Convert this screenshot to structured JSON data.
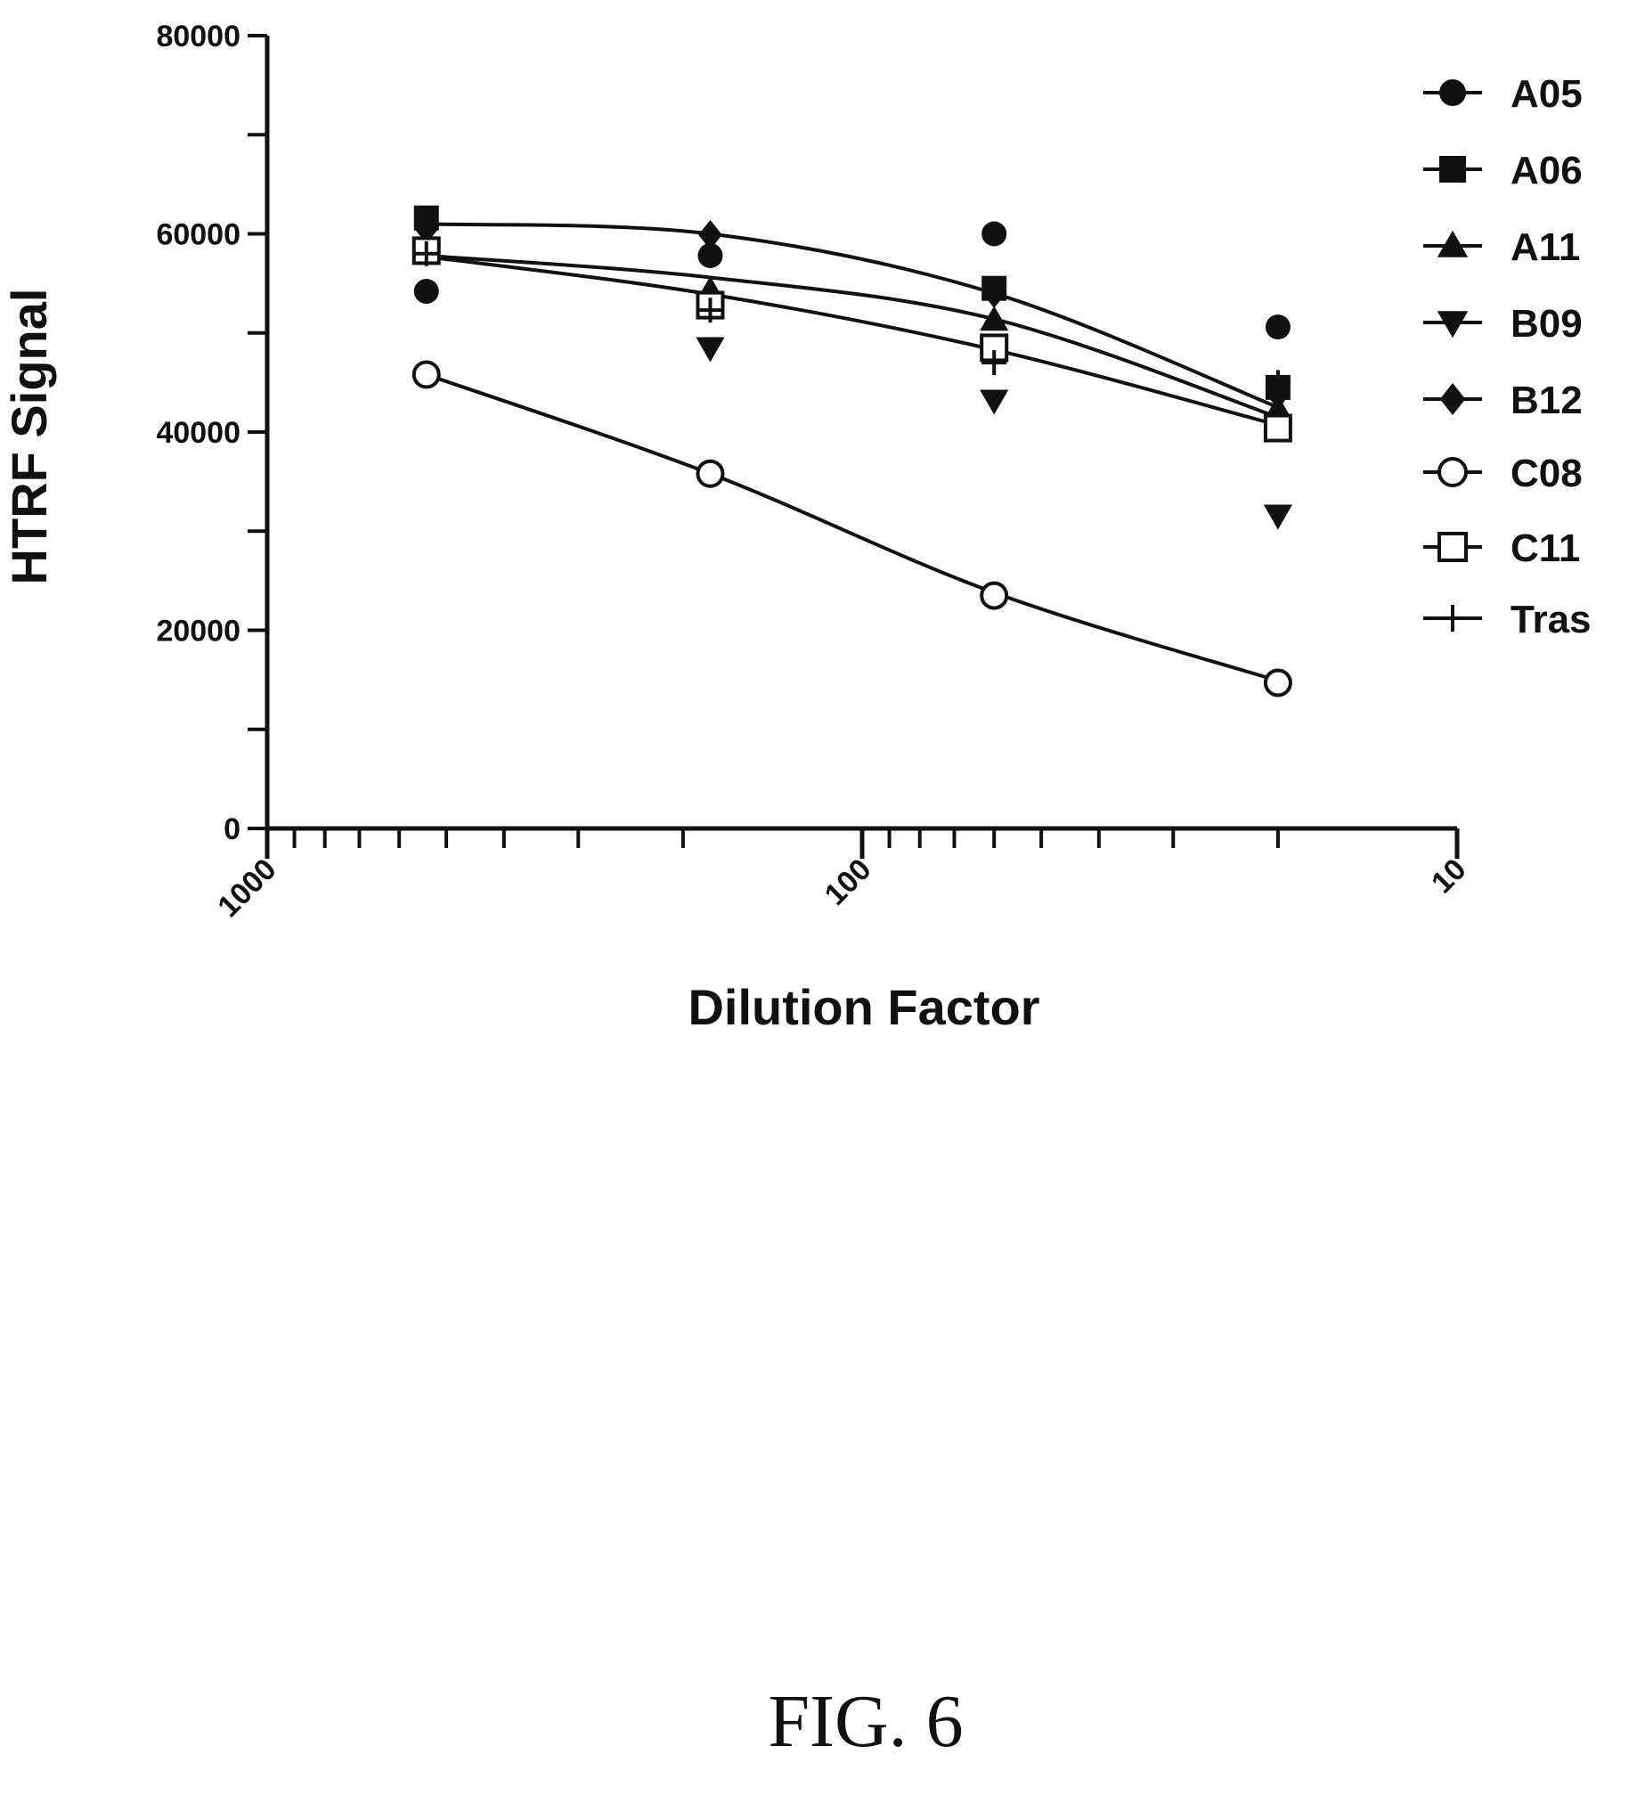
{
  "chart_data": {
    "type": "scatter",
    "xlabel": "Dilution Factor",
    "ylabel": "HTRF Signal",
    "x_scale": "log",
    "x_reversed": true,
    "xlim": [
      1000,
      10
    ],
    "ylim": [
      0,
      80000
    ],
    "x_tick_labels": [
      "1000",
      "100",
      "10"
    ],
    "y_tick_labels": [
      "0",
      "20000",
      "40000",
      "60000",
      "80000"
    ],
    "legend_position": "right",
    "x": [
      540,
      180,
      60,
      20
    ],
    "series": [
      {
        "name": "A05",
        "marker": "filled-circle",
        "values": [
          54200,
          57800,
          60000,
          50600
        ]
      },
      {
        "name": "A06",
        "marker": "filled-square",
        "values": [
          61600,
          53000,
          54500,
          44500
        ]
      },
      {
        "name": "A11",
        "marker": "filled-triangle-up",
        "values": [
          58000,
          54300,
          51300,
          42300
        ]
      },
      {
        "name": "B09",
        "marker": "filled-triangle-down",
        "values": [
          58200,
          48500,
          43200,
          31600
        ]
      },
      {
        "name": "B12",
        "marker": "filled-diamond",
        "values": [
          60500,
          59900,
          54000,
          43800
        ]
      },
      {
        "name": "C08",
        "marker": "open-circle",
        "values": [
          45800,
          35800,
          23500,
          14700
        ]
      },
      {
        "name": "C11",
        "marker": "open-square",
        "values": [
          58300,
          52800,
          48500,
          40400
        ]
      },
      {
        "name": "Tras",
        "marker": "plus",
        "values": [
          58000,
          52300,
          47000,
          45000
        ]
      }
    ],
    "fit_curves": [
      {
        "series": "A06",
        "values": [
          61000,
          60000,
          54000,
          42500
        ]
      },
      {
        "series": "B12",
        "values": [
          57800,
          55600,
          51400,
          41500
        ]
      },
      {
        "series": "C11",
        "values": [
          57700,
          53900,
          48300,
          40700
        ]
      },
      {
        "series": "C08",
        "values": [
          45800,
          35800,
          23800,
          14900
        ]
      }
    ]
  },
  "caption": "FIG. 6"
}
